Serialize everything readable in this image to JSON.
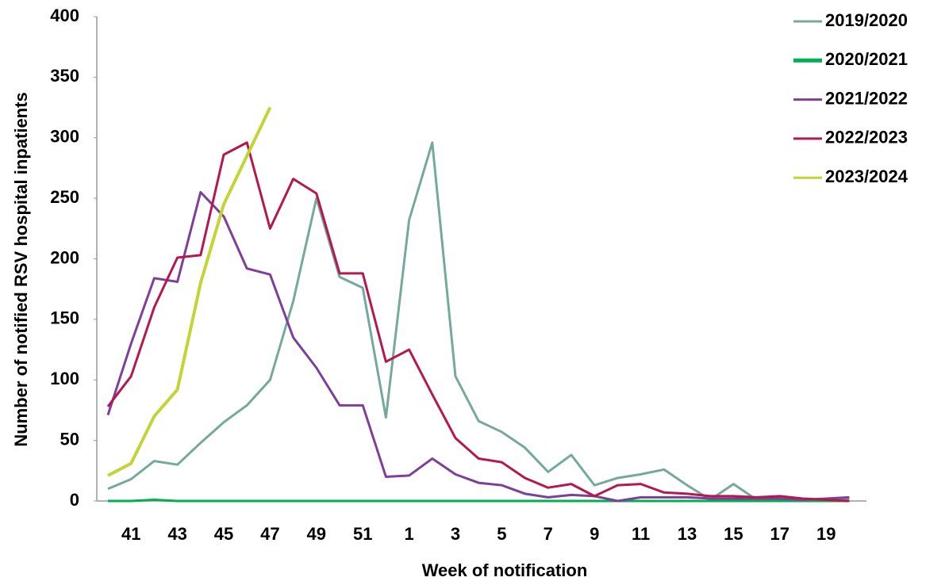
{
  "chart_data": {
    "type": "line",
    "x_label": "Week of notification",
    "y_label": "Number of notified RSV hospital inpatients",
    "categories": [
      null,
      "41",
      null,
      "43",
      null,
      "45",
      null,
      "47",
      null,
      "49",
      null,
      "51",
      null,
      "1",
      null,
      "3",
      null,
      "5",
      null,
      "7",
      null,
      "9",
      null,
      "11",
      null,
      "13",
      null,
      "15",
      null,
      "17",
      null,
      "19",
      null
    ],
    "ylim": [
      0,
      400
    ],
    "yticks": [
      0,
      50,
      100,
      150,
      200,
      250,
      300,
      350,
      400
    ],
    "legend": "top-right",
    "series": [
      {
        "name": "2019/2020",
        "color": "#74a99c",
        "values": [
          10,
          18,
          33,
          30,
          48,
          65,
          79,
          100,
          165,
          250,
          185,
          176,
          69,
          232,
          296,
          103,
          66,
          57,
          44,
          24,
          38,
          13,
          19,
          22,
          26,
          13,
          1,
          14,
          1,
          1,
          1,
          1,
          1
        ]
      },
      {
        "name": "2020/2021",
        "color": "#00b050",
        "values": [
          0,
          0,
          1,
          0,
          0,
          0,
          0,
          0,
          0,
          0,
          0,
          0,
          0,
          0,
          0,
          0,
          0,
          0,
          0,
          0,
          0,
          0,
          0,
          0,
          0,
          0,
          0,
          0,
          0,
          0,
          0,
          0,
          0
        ]
      },
      {
        "name": "2021/2022",
        "color": "#7f3f98",
        "values": [
          71,
          130,
          184,
          181,
          255,
          235,
          192,
          187,
          135,
          110,
          79,
          79,
          20,
          21,
          35,
          22,
          15,
          13,
          6,
          3,
          5,
          4,
          0,
          3,
          3,
          3,
          2,
          2,
          2,
          2,
          1,
          2,
          3
        ]
      },
      {
        "name": "2022/2023",
        "color": "#b5184f",
        "values": [
          78,
          103,
          160,
          201,
          203,
          286,
          296,
          225,
          266,
          254,
          188,
          188,
          115,
          125,
          88,
          52,
          35,
          32,
          19,
          11,
          14,
          4,
          13,
          14,
          7,
          6,
          4,
          4,
          3,
          4,
          2,
          1,
          0
        ]
      },
      {
        "name": "2023/2024",
        "color": "#c3d437",
        "values": [
          21,
          31,
          70,
          92,
          180,
          245,
          285,
          325,
          null,
          null,
          null,
          null,
          null,
          null,
          null,
          null,
          null,
          null,
          null,
          null,
          null,
          null,
          null,
          null,
          null,
          null,
          null,
          null,
          null,
          null,
          null,
          null,
          null
        ]
      }
    ]
  }
}
